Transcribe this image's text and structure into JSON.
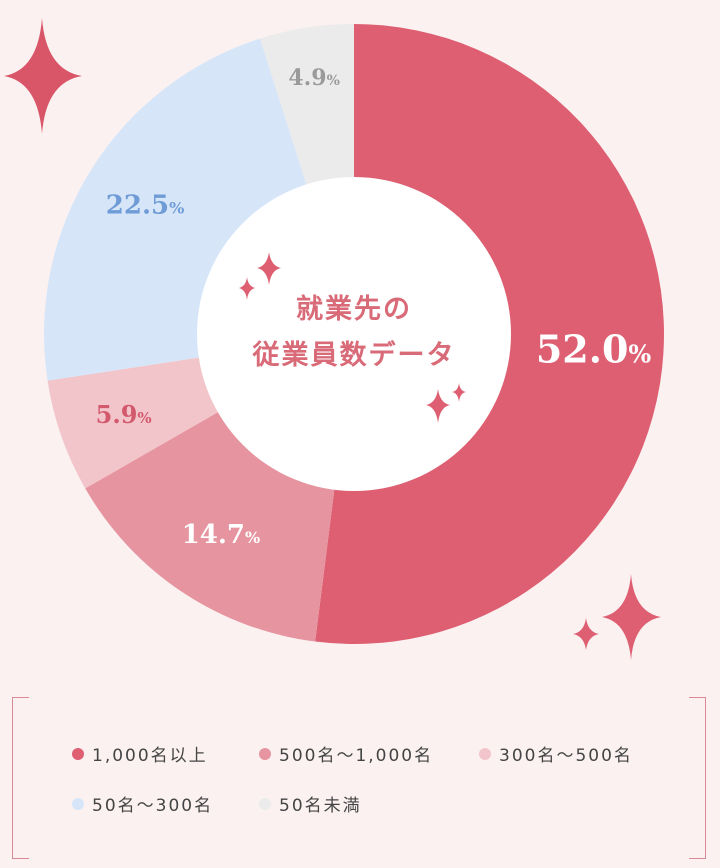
{
  "chart_data": {
    "type": "pie",
    "title": "就業先の 従業員数データ",
    "title_lines": [
      "就業先の",
      "従業員数データ"
    ],
    "categories": [
      "1,000名以上",
      "500名～1,000名",
      "300名～500名",
      "50名～300名",
      "50名未満"
    ],
    "values": [
      52.0,
      14.7,
      5.9,
      22.5,
      4.9
    ],
    "labels": [
      "52.0",
      "14.7",
      "5.9",
      "22.5",
      "4.9"
    ],
    "unit": "%",
    "colors": [
      "#de5f72",
      "#e6949f",
      "#f2c5cb",
      "#d6e6f8",
      "#ebebeb"
    ],
    "label_colors": [
      "#ffffff",
      "#ffffff",
      "#d35a6c",
      "#6f9bd6",
      "#9a9a9a"
    ],
    "legend": "bottom"
  }
}
